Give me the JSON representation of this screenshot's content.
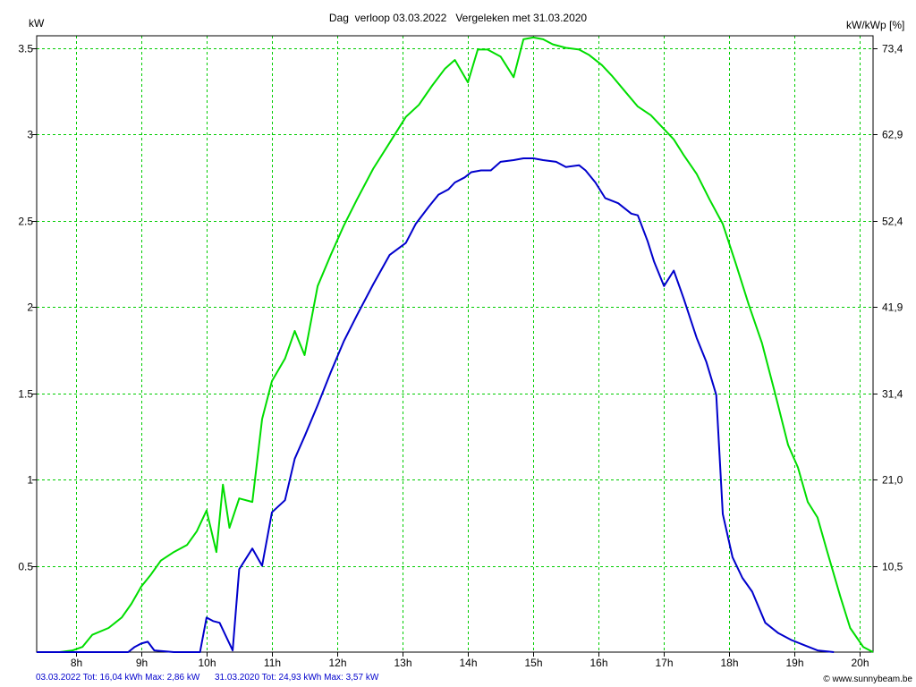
{
  "chart_data": {
    "type": "line",
    "title": "Dag  verloop 03.03.2022   Vergeleken met 31.03.2020",
    "ylabel_left": "kW",
    "ylabel_right": "kW/kWp [%]",
    "x_range": [
      7.4,
      20.2
    ],
    "ylim": [
      0,
      3.57
    ],
    "grid": true,
    "x_ticks": [
      {
        "value": 8,
        "label": "8h"
      },
      {
        "value": 9,
        "label": "9h"
      },
      {
        "value": 10,
        "label": "10h"
      },
      {
        "value": 11,
        "label": "11h"
      },
      {
        "value": 12,
        "label": "12h"
      },
      {
        "value": 13,
        "label": "13h"
      },
      {
        "value": 14,
        "label": "14h"
      },
      {
        "value": 15,
        "label": "15h"
      },
      {
        "value": 16,
        "label": "16h"
      },
      {
        "value": 17,
        "label": "17h"
      },
      {
        "value": 18,
        "label": "18h"
      },
      {
        "value": 19,
        "label": "19h"
      },
      {
        "value": 20,
        "label": "20h"
      }
    ],
    "y_ticks_left": [
      {
        "value": 0.5,
        "label": "0.5"
      },
      {
        "value": 1,
        "label": "1"
      },
      {
        "value": 1.5,
        "label": "1.5"
      },
      {
        "value": 2,
        "label": "2"
      },
      {
        "value": 2.5,
        "label": "2.5"
      },
      {
        "value": 3,
        "label": "3"
      },
      {
        "value": 3.5,
        "label": "3.5"
      }
    ],
    "y_ticks_right": [
      {
        "value": 0.5,
        "label": "10,5"
      },
      {
        "value": 1,
        "label": "21,0"
      },
      {
        "value": 1.5,
        "label": "31,4"
      },
      {
        "value": 2,
        "label": "41,9"
      },
      {
        "value": 2.5,
        "label": "52,4"
      },
      {
        "value": 3,
        "label": "62,9"
      },
      {
        "value": 3.5,
        "label": "73,4"
      }
    ],
    "series": [
      {
        "color": "#0000cc",
        "x": [
          7.4,
          8.8,
          8.9,
          9.0,
          9.1,
          9.2,
          9.5,
          9.9,
          10.0,
          10.1,
          10.2,
          10.4,
          10.5,
          10.7,
          10.85,
          11.0,
          11.2,
          11.35,
          11.5,
          11.7,
          11.9,
          12.1,
          12.3,
          12.55,
          12.8,
          13.05,
          13.2,
          13.4,
          13.55,
          13.7,
          13.8,
          13.95,
          14.05,
          14.2,
          14.35,
          14.5,
          14.7,
          14.85,
          15.0,
          15.15,
          15.35,
          15.5,
          15.7,
          15.8,
          15.95,
          16.1,
          16.3,
          16.5,
          16.6,
          16.75,
          16.85,
          17.0,
          17.15,
          17.3,
          17.5,
          17.65,
          17.8,
          17.9,
          18.05,
          18.2,
          18.35,
          18.55,
          18.75,
          18.95,
          19.15,
          19.35,
          19.6
        ],
        "values": [
          0,
          0,
          0.03,
          0.05,
          0.06,
          0.01,
          0,
          0,
          0.2,
          0.18,
          0.17,
          0.01,
          0.48,
          0.6,
          0.5,
          0.81,
          0.88,
          1.12,
          1.25,
          1.43,
          1.62,
          1.8,
          1.95,
          2.13,
          2.3,
          2.37,
          2.48,
          2.58,
          2.65,
          2.68,
          2.72,
          2.75,
          2.78,
          2.79,
          2.79,
          2.84,
          2.85,
          2.86,
          2.86,
          2.85,
          2.84,
          2.81,
          2.82,
          2.79,
          2.72,
          2.63,
          2.6,
          2.54,
          2.53,
          2.38,
          2.26,
          2.12,
          2.21,
          2.05,
          1.82,
          1.68,
          1.49,
          0.8,
          0.55,
          0.43,
          0.35,
          0.17,
          0.11,
          0.07,
          0.04,
          0.01,
          0
        ],
        "legend": "03.03.2022 Tot: 16,04 kWh Max: 2,86 kW"
      },
      {
        "color": "#00dd00",
        "x": [
          7.4,
          7.75,
          7.95,
          8.1,
          8.25,
          8.5,
          8.7,
          8.85,
          9.0,
          9.15,
          9.3,
          9.5,
          9.7,
          9.85,
          10.0,
          10.15,
          10.25,
          10.35,
          10.5,
          10.7,
          10.85,
          11.0,
          11.2,
          11.35,
          11.5,
          11.7,
          11.9,
          12.1,
          12.3,
          12.55,
          12.8,
          13.05,
          13.25,
          13.45,
          13.65,
          13.8,
          14.0,
          14.15,
          14.3,
          14.5,
          14.7,
          14.85,
          15.0,
          15.15,
          15.3,
          15.5,
          15.7,
          15.85,
          16.05,
          16.2,
          16.4,
          16.6,
          16.8,
          16.95,
          17.15,
          17.3,
          17.5,
          17.7,
          17.9,
          18.1,
          18.3,
          18.5,
          18.7,
          18.9,
          19.05,
          19.2,
          19.35,
          19.5,
          19.7,
          19.85,
          20.05,
          20.2
        ],
        "values": [
          0,
          0,
          0.01,
          0.03,
          0.1,
          0.14,
          0.2,
          0.28,
          0.38,
          0.45,
          0.53,
          0.58,
          0.62,
          0.7,
          0.82,
          0.58,
          0.97,
          0.72,
          0.89,
          0.87,
          1.35,
          1.57,
          1.7,
          1.86,
          1.72,
          2.12,
          2.3,
          2.47,
          2.62,
          2.8,
          2.95,
          3.1,
          3.17,
          3.28,
          3.38,
          3.43,
          3.3,
          3.49,
          3.49,
          3.45,
          3.33,
          3.55,
          3.56,
          3.55,
          3.52,
          3.5,
          3.49,
          3.46,
          3.4,
          3.34,
          3.25,
          3.16,
          3.11,
          3.05,
          2.97,
          2.88,
          2.77,
          2.62,
          2.48,
          2.25,
          2.01,
          1.79,
          1.5,
          1.2,
          1.07,
          0.87,
          0.78,
          0.58,
          0.32,
          0.14,
          0.03,
          0
        ],
        "legend": "31.03.2020 Tot: 24,93 kWh Max: 3,57 kW"
      }
    ],
    "copyright": "© www.sunnybeam.be"
  },
  "colors": {
    "grid": "#00cc00",
    "axis": "#000000",
    "background": "#ffffff"
  }
}
